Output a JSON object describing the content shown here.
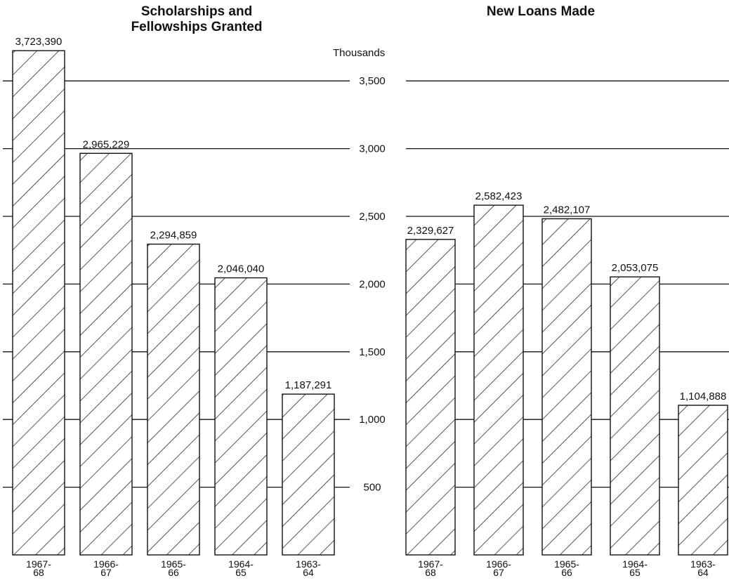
{
  "units_label": "Thousands",
  "y_ticks": [
    500,
    1000,
    1500,
    2000,
    2500,
    3000,
    3500
  ],
  "y_tick_labels": [
    "500",
    "1,000",
    "1,500",
    "2,000",
    "2,500",
    "3,000",
    "3,500"
  ],
  "chart_data": [
    {
      "type": "bar",
      "title": "Scholarships and Fellowships Granted",
      "categories": [
        "1967-68",
        "1966-67",
        "1965-66",
        "1964-65",
        "1963-64"
      ],
      "category_lines": [
        [
          "1967-",
          "68"
        ],
        [
          "1966-",
          "67"
        ],
        [
          "1965-",
          "66"
        ],
        [
          "1964-",
          "65"
        ],
        [
          "1963-",
          "64"
        ]
      ],
      "values": [
        3723390,
        2965229,
        2294859,
        2046040,
        1187291
      ],
      "value_labels": [
        "3,723,390",
        "2,965,229",
        "2,294,859",
        "2,046,040",
        "1,187,291"
      ],
      "ylabel": "Thousands",
      "ylim": [
        0,
        3750
      ],
      "grid": true,
      "fill": "diagonal hatch"
    },
    {
      "type": "bar",
      "title": "New Loans Made",
      "categories": [
        "1967-68",
        "1966-67",
        "1965-66",
        "1964-65",
        "1963-64"
      ],
      "category_lines": [
        [
          "1967-",
          "68"
        ],
        [
          "1966-",
          "67"
        ],
        [
          "1965-",
          "66"
        ],
        [
          "1964-",
          "65"
        ],
        [
          "1963-",
          "64"
        ]
      ],
      "values": [
        2329627,
        2582423,
        2482107,
        2053075,
        1104888
      ],
      "value_labels": [
        "2,329,627",
        "2,582,423",
        "2,482,107",
        "2,053,075",
        "1,104,888"
      ],
      "ylabel": "Thousands",
      "ylim": [
        0,
        3750
      ],
      "grid": true,
      "fill": "diagonal hatch"
    }
  ],
  "colors": {
    "ink": "#111111",
    "background": "#ffffff"
  }
}
